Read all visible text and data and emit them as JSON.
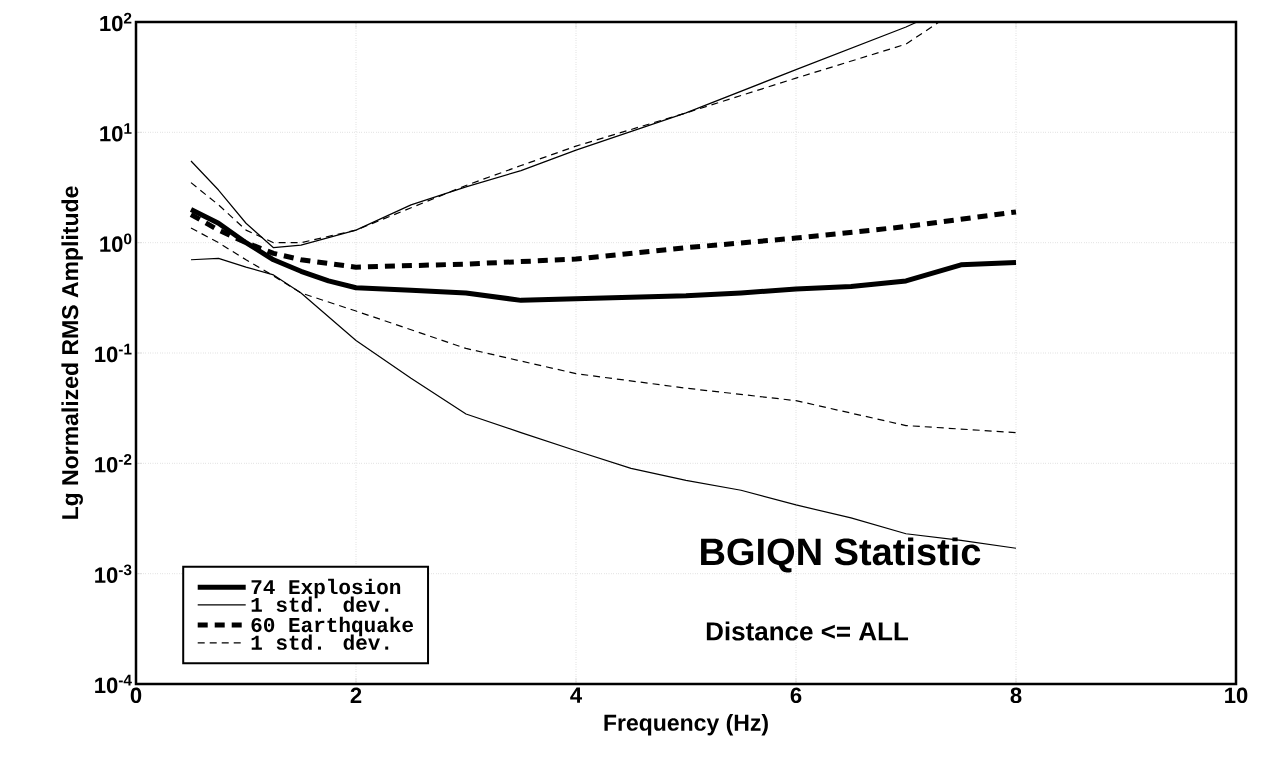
{
  "chart_data": {
    "type": "line",
    "xlabel": "Frequency (Hz)",
    "ylabel": "Lg Normalized RMS Amplitude",
    "annotations": [
      "BGIQN Statistic",
      "Distance <= ALL"
    ],
    "xlim": [
      0,
      10
    ],
    "xticks": [
      0,
      2,
      4,
      6,
      8,
      10
    ],
    "ylim": [
      0.0001,
      100
    ],
    "log": true,
    "yticks": [
      {
        "value": 0.0001,
        "label": "10$^{-4}$"
      },
      {
        "value": 0.001,
        "label": "10$^{-3}$"
      },
      {
        "value": 0.01,
        "label": "10$^{-2}$"
      },
      {
        "value": 0.1,
        "label": "10$^{-1}$"
      },
      {
        "value": 1,
        "label": "10$^{0}$"
      },
      {
        "value": 10,
        "label": "10$^{1}$"
      },
      {
        "value": 100,
        "label": "10$^{2}$"
      }
    ],
    "grid": true,
    "legend": "bottom left",
    "marker": "none",
    "series": [
      {
        "name": "74 Explosion",
        "color": "#000000",
        "line_style": "solid",
        "x": [
          0.5,
          0.75,
          1.0,
          1.25,
          1.5,
          1.75,
          2.0,
          2.5,
          3.0,
          3.5,
          4.0,
          4.5,
          5.0,
          5.5,
          6.0,
          6.5,
          7.0,
          7.5,
          8.0
        ],
        "values": [
          2.0,
          1.5,
          1.0,
          0.7,
          0.55,
          0.45,
          0.39,
          0.37,
          0.35,
          0.3,
          0.31,
          0.32,
          0.33,
          0.35,
          0.38,
          0.4,
          0.45,
          0.63,
          0.66
        ]
      },
      {
        "name": "1 std. dev.",
        "color": "#000000",
        "line_style": "solid",
        "x": [
          0.5,
          0.75,
          1.0,
          1.25,
          1.5,
          2.0,
          2.5,
          3.0,
          3.5,
          4.0,
          5.0,
          6.0,
          7.0,
          7.1
        ],
        "values": [
          5.5,
          3.0,
          1.5,
          0.9,
          0.95,
          1.3,
          2.2,
          3.2,
          4.5,
          6.9,
          15,
          37,
          90,
          100
        ]
      },
      {
        "color": "#000000",
        "line_style": "solid",
        "x": [
          0.5,
          0.75,
          1.0,
          1.25,
          1.5,
          2.0,
          2.5,
          3.0,
          3.5,
          4.0,
          4.5,
          5.0,
          5.5,
          6.0,
          6.5,
          7.0,
          7.5,
          8.0
        ],
        "values": [
          0.7,
          0.72,
          0.6,
          0.51,
          0.35,
          0.13,
          0.059,
          0.028,
          0.019,
          0.013,
          0.009,
          0.007,
          0.0057,
          0.0042,
          0.0032,
          0.0023,
          0.002,
          0.0017
        ]
      },
      {
        "name": "60 Earthquake",
        "color": "#000000",
        "line_style": "dashed",
        "x": [
          0.5,
          0.75,
          1.0,
          1.25,
          1.5,
          2.0,
          3.0,
          4.0,
          5.0,
          6.0,
          7.0,
          8.0
        ],
        "values": [
          1.8,
          1.3,
          1.0,
          0.8,
          0.7,
          0.6,
          0.64,
          0.71,
          0.9,
          1.1,
          1.4,
          1.9
        ]
      },
      {
        "name": "1 std. dev.",
        "color": "#000000",
        "line_style": "dashed",
        "x": [
          0.5,
          0.75,
          1.0,
          1.25,
          1.5,
          2.0,
          3.0,
          3.5,
          4.0,
          5.0,
          6.0,
          7.0,
          7.3
        ],
        "values": [
          3.5,
          2.2,
          1.3,
          1.0,
          1.0,
          1.3,
          3.3,
          5,
          7.5,
          15,
          31,
          63,
          100
        ]
      },
      {
        "color": "#000000",
        "line_style": "dashed",
        "x": [
          0.5,
          0.75,
          1.0,
          1.25,
          1.5,
          2.0,
          3.0,
          4.0,
          5.0,
          6.0,
          7.0,
          8.0
        ],
        "values": [
          1.36,
          1.0,
          0.7,
          0.5,
          0.35,
          0.24,
          0.11,
          0.065,
          0.048,
          0.037,
          0.022,
          0.019
        ]
      }
    ]
  }
}
